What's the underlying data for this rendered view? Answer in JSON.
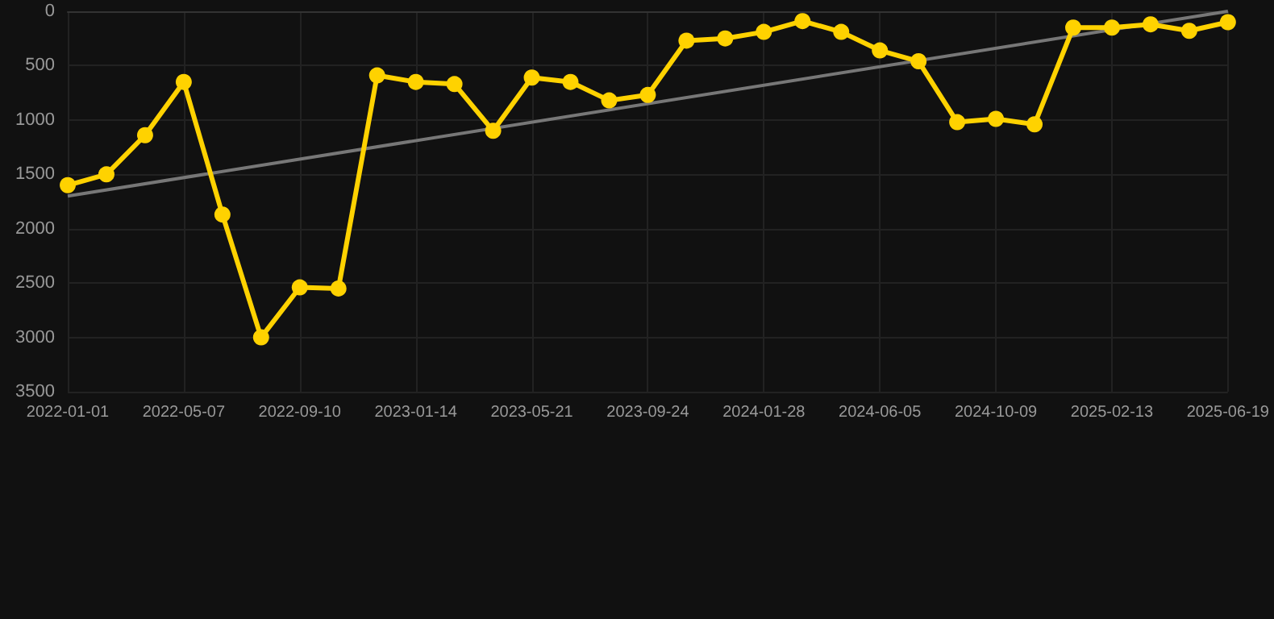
{
  "chart_data": {
    "type": "line",
    "categories": [
      "2022-01-01",
      null,
      null,
      "2022-05-07",
      null,
      null,
      "2022-09-10",
      null,
      null,
      "2023-01-14",
      null,
      null,
      "2023-05-21",
      null,
      null,
      "2023-09-24",
      null,
      null,
      "2024-01-28",
      null,
      null,
      "2024-06-05",
      null,
      null,
      "2024-10-09",
      null,
      null,
      "2025-02-13",
      null,
      null,
      "2025-06-19"
    ],
    "series": [
      {
        "color": "#ffd200",
        "marker": "circle",
        "values": [
          1600,
          1500,
          1140,
          650,
          1870,
          3000,
          2540,
          2550,
          590,
          650,
          670,
          1100,
          610,
          650,
          820,
          770,
          270,
          250,
          190,
          90,
          190,
          360,
          460,
          1020,
          990,
          1040,
          150,
          150,
          120,
          180,
          100
        ]
      },
      {
        "type": "line",
        "color": "#777777",
        "marker": "none",
        "values": [
          1700,
          null,
          null,
          null,
          null,
          null,
          null,
          null,
          null,
          null,
          null,
          null,
          null,
          null,
          null,
          null,
          null,
          null,
          null,
          null,
          null,
          null,
          null,
          null,
          null,
          null,
          null,
          null,
          null,
          null,
          0
        ]
      }
    ],
    "ylim": [
      3500,
      0
    ],
    "yticks": [
      0,
      500,
      1000,
      1500,
      2000,
      2500,
      3000,
      3500
    ],
    "grid": true
  }
}
